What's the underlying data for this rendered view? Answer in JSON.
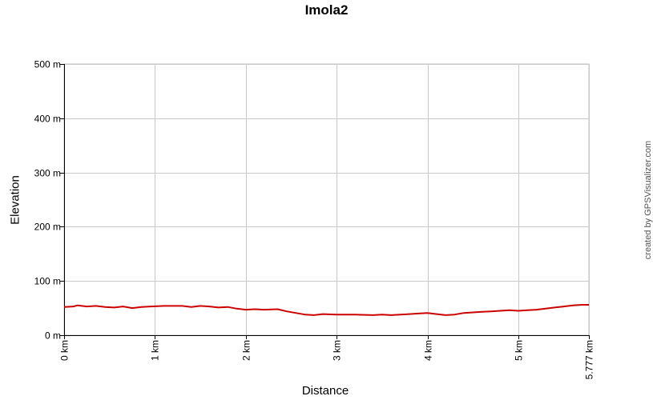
{
  "chart_data": {
    "type": "line",
    "title": "Imola2",
    "xlabel": "Distance",
    "ylabel": "Elevation",
    "xlim": [
      0,
      5.777
    ],
    "ylim": [
      0,
      500
    ],
    "x_ticks": [
      {
        "value": 0,
        "label": "0 km"
      },
      {
        "value": 1,
        "label": "1 km"
      },
      {
        "value": 2,
        "label": "2 km"
      },
      {
        "value": 3,
        "label": "3 km"
      },
      {
        "value": 4,
        "label": "4 km"
      },
      {
        "value": 5,
        "label": "5 km"
      },
      {
        "value": 5.777,
        "label": "5.777 km"
      }
    ],
    "y_ticks": [
      {
        "value": 0,
        "label": "0 m"
      },
      {
        "value": 100,
        "label": "100 m"
      },
      {
        "value": 200,
        "label": "200 m"
      },
      {
        "value": 300,
        "label": "300 m"
      },
      {
        "value": 400,
        "label": "400 m"
      },
      {
        "value": 500,
        "label": "500 m"
      }
    ],
    "grid": true,
    "series": [
      {
        "color": "#cc0000",
        "x": [
          0,
          0.1,
          0.15,
          0.25,
          0.35,
          0.45,
          0.55,
          0.65,
          0.75,
          0.85,
          0.95,
          1.1,
          1.3,
          1.4,
          1.5,
          1.6,
          1.7,
          1.8,
          1.9,
          2.0,
          2.1,
          2.2,
          2.35,
          2.45,
          2.55,
          2.65,
          2.75,
          2.85,
          3.0,
          3.2,
          3.4,
          3.5,
          3.6,
          3.7,
          3.8,
          3.9,
          4.0,
          4.1,
          4.2,
          4.3,
          4.4,
          4.5,
          4.6,
          4.7,
          4.8,
          4.9,
          5.0,
          5.1,
          5.2,
          5.3,
          5.4,
          5.5,
          5.6,
          5.7,
          5.777
        ],
        "y": [
          52,
          53,
          55,
          53,
          54,
          52,
          51,
          53,
          50,
          52,
          53,
          54,
          54,
          52,
          54,
          53,
          51,
          52,
          49,
          47,
          48,
          47,
          48,
          44,
          41,
          38,
          37,
          39,
          38,
          38,
          37,
          38,
          37,
          38,
          39,
          40,
          41,
          39,
          37,
          38,
          41,
          42,
          43,
          44,
          45,
          46,
          45,
          46,
          47,
          49,
          51,
          53,
          55,
          56,
          56
        ]
      }
    ]
  },
  "credit": "created by GPSVisualizer.com"
}
